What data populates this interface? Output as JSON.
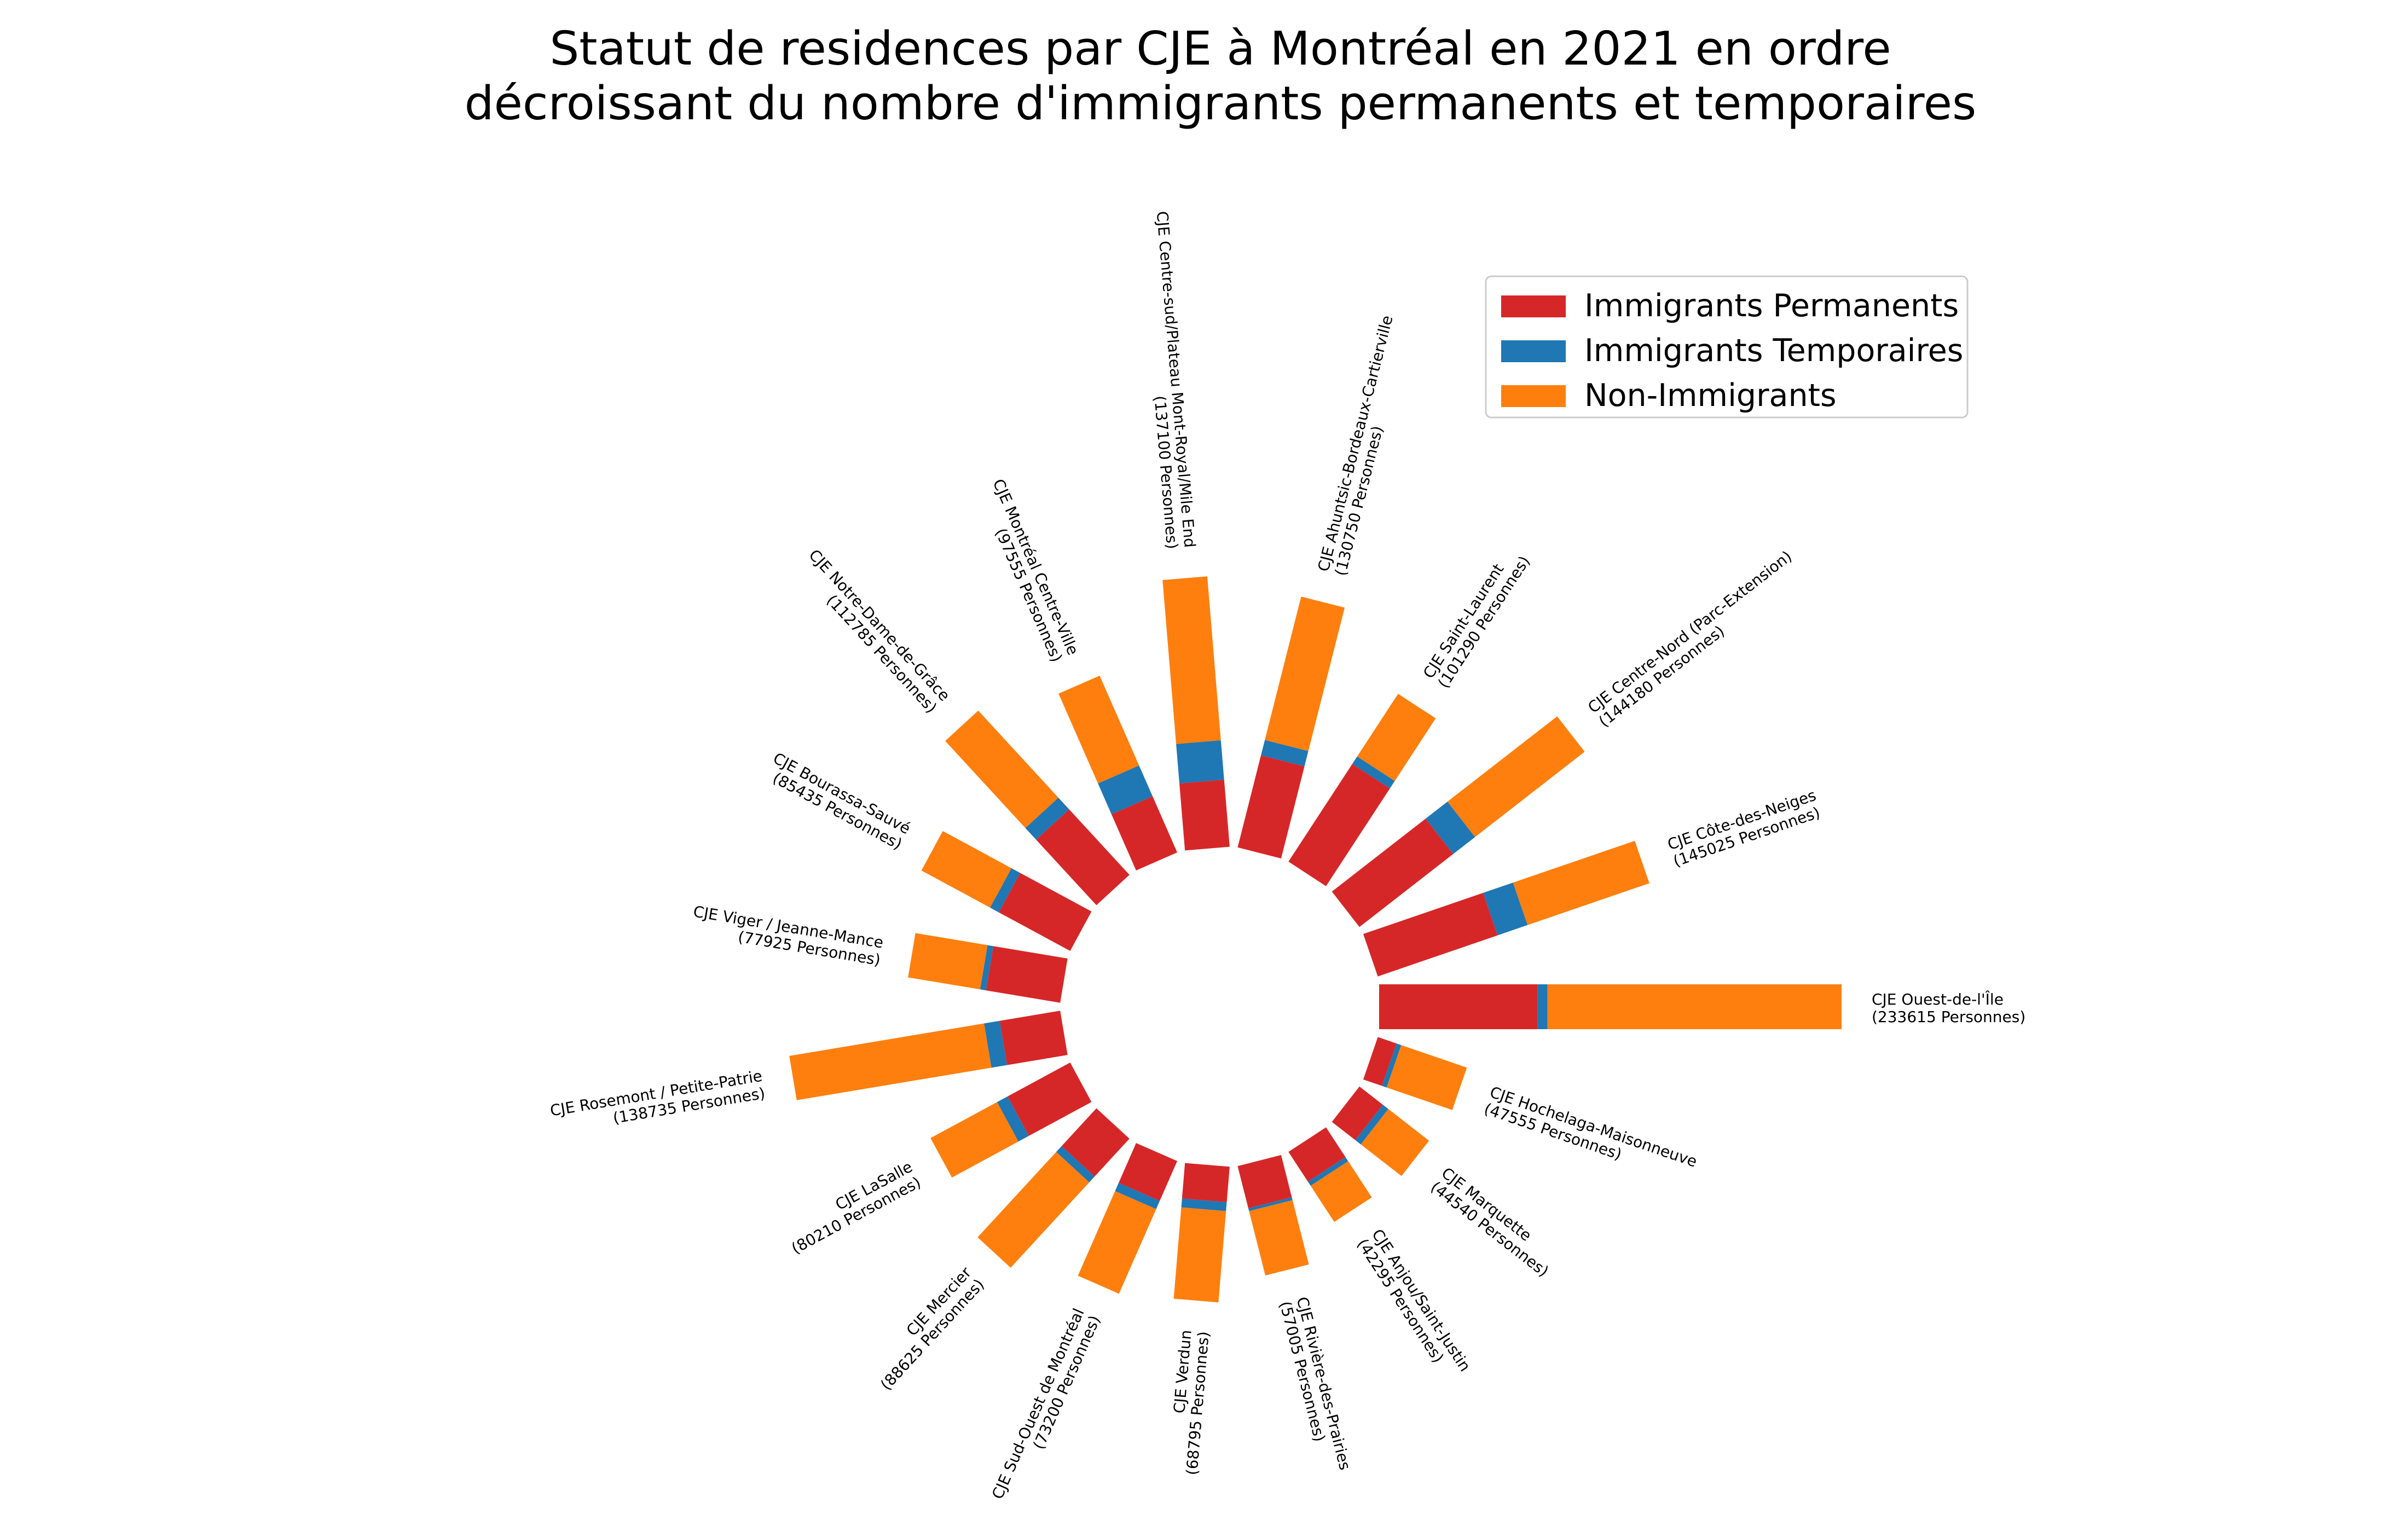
{
  "chart_data": {
    "type": "bar",
    "subtype": "circular-stacked-bar",
    "title": "Statut de residences par CJE à Montréal en 2021 en ordre décroissant du nombre d'immigrants permanents et temporaires",
    "title_lines": [
      "Statut de residences par CJE à Montréal en 2021 en ordre",
      "décroissant du nombre d'immigrants permanents et temporaires"
    ],
    "legend_position": "upper-right",
    "grid": false,
    "series": [
      {
        "name": "Immigrants Permanents",
        "color": "#d62728"
      },
      {
        "name": "Immigrants Temporaires",
        "color": "#1f77b4"
      },
      {
        "name": "Non-Immigrants",
        "color": "#ff7f0e"
      }
    ],
    "categories": [
      {
        "name": "CJE Ouest-de-l'Île",
        "total_label": "(233615 Personnes)",
        "total": 233615,
        "permanents": 80000,
        "temporaires": 5000,
        "non_immigrants": 148615
      },
      {
        "name": "CJE Côte-des-Neiges",
        "total_label": "(145025 Personnes)",
        "total": 145025,
        "permanents": 64000,
        "temporaires": 16000,
        "non_immigrants": 65025
      },
      {
        "name": "CJE Centre-Nord (Parc-Extension)",
        "total_label": "(144180 Personnes)",
        "total": 144180,
        "permanents": 60000,
        "temporaires": 14000,
        "non_immigrants": 70180
      },
      {
        "name": "CJE Saint-Laurent",
        "total_label": "(101290 Personnes)",
        "total": 101290,
        "permanents": 59000,
        "temporaires": 4500,
        "non_immigrants": 37790
      },
      {
        "name": "CJE Ahuntsic-Bordeaux-Cartierville",
        "total_label": "(130750 Personnes)",
        "total": 130750,
        "permanents": 48000,
        "temporaires": 8000,
        "non_immigrants": 74750
      },
      {
        "name": "CJE Centre-sud/Plateau Mont-Royal/Mile End",
        "total_label": "(137100 Personnes)",
        "total": 137100,
        "permanents": 34000,
        "temporaires": 20000,
        "non_immigrants": 83100
      },
      {
        "name": "CJE Montréal Centre-Ville",
        "total_label": "(97555 Personnes)",
        "total": 97555,
        "permanents": 31000,
        "temporaires": 17000,
        "non_immigrants": 49555
      },
      {
        "name": "CJE Notre-Dame-de-Grâce",
        "total_label": "(112785 Personnes)",
        "total": 112785,
        "permanents": 45000,
        "temporaires": 8000,
        "non_immigrants": 59785
      },
      {
        "name": "CJE Bourassa-Sauvé",
        "total_label": "(85435 Personnes)",
        "total": 85435,
        "permanents": 41000,
        "temporaires": 5000,
        "non_immigrants": 39435
      },
      {
        "name": "CJE Viger / Jeanne-Mance",
        "total_label": "(77925 Personnes)",
        "total": 77925,
        "permanents": 38000,
        "temporaires": 3000,
        "non_immigrants": 36925
      },
      {
        "name": "CJE Rosemont / Petite-Patrie",
        "total_label": "(138735 Personnes)",
        "total": 138735,
        "permanents": 31000,
        "temporaires": 8000,
        "non_immigrants": 99735
      },
      {
        "name": "CJE LaSalle",
        "total_label": "(80210 Personnes)",
        "total": 80210,
        "permanents": 36000,
        "temporaires": 6000,
        "non_immigrants": 38210
      },
      {
        "name": "CJE Mercier",
        "total_label": "(88625 Personnes)",
        "total": 88625,
        "permanents": 26000,
        "temporaires": 4000,
        "non_immigrants": 58625
      },
      {
        "name": "CJE Sud-Ouest de Montréal",
        "total_label": "(73200 Personnes)",
        "total": 73200,
        "permanents": 22000,
        "temporaires": 4500,
        "non_immigrants": 46700
      },
      {
        "name": "CJE Verdun",
        "total_label": "(68795 Personnes)",
        "total": 68795,
        "permanents": 18000,
        "temporaires": 4500,
        "non_immigrants": 46295
      },
      {
        "name": "CJE Rivière-des-Prairies",
        "total_label": "(57005 Personnes)",
        "total": 57005,
        "permanents": 22000,
        "temporaires": 1500,
        "non_immigrants": 33505
      },
      {
        "name": "CJE Anjou/Saint-Justin",
        "total_label": "(42295 Personnes)",
        "total": 42295,
        "permanents": 18000,
        "temporaires": 2500,
        "non_immigrants": 21795
      },
      {
        "name": "CJE Marquette",
        "total_label": "(44540 Personnes)",
        "total": 44540,
        "permanents": 15000,
        "temporaires": 3500,
        "non_immigrants": 26040
      },
      {
        "name": "CJE Hochelaga-Maisonneuve",
        "total_label": "(47555 Personnes)",
        "total": 47555,
        "permanents": 10000,
        "temporaires": 2500,
        "non_immigrants": 35055
      }
    ]
  }
}
